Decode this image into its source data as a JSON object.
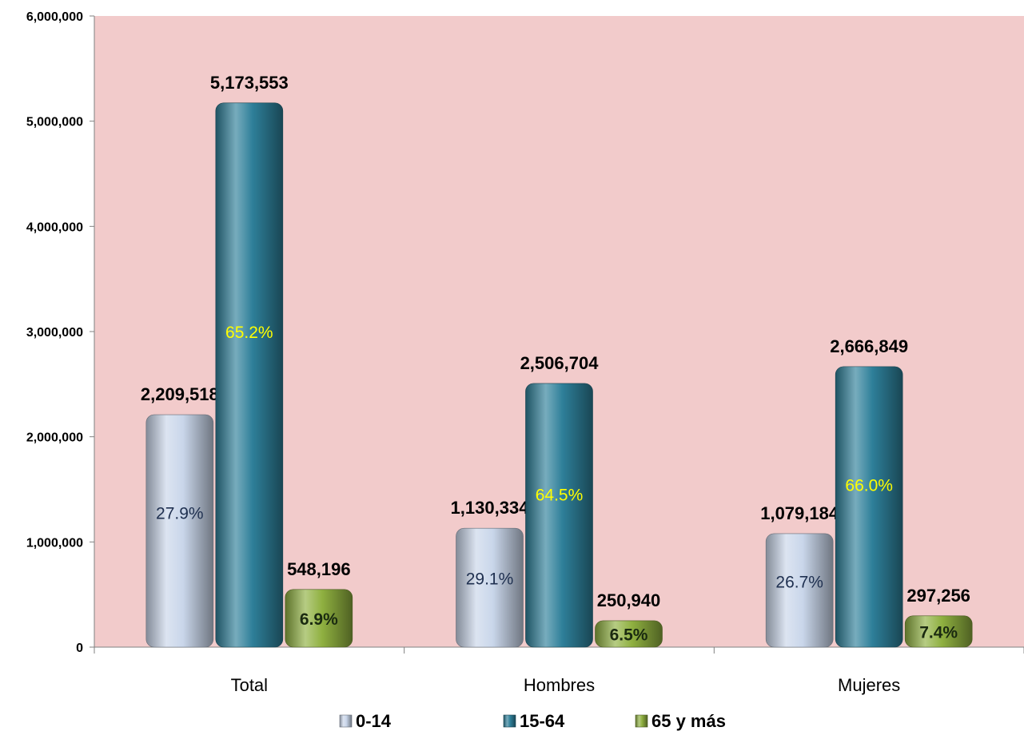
{
  "chart_data": {
    "type": "bar",
    "categories": [
      "Total",
      "Hombres",
      "Mujeres"
    ],
    "series": [
      {
        "name": "0-14",
        "values": [
          2209518,
          1130334,
          1079184
        ],
        "value_labels": [
          "2,209,518",
          "1,130,334",
          "1,079,184"
        ],
        "pct_labels": [
          "27.9%",
          "29.1%",
          "26.7%"
        ],
        "color": "#c9d6ea",
        "pct_color": "#1f3050"
      },
      {
        "name": "15-64",
        "values": [
          5173553,
          2506704,
          2666849
        ],
        "value_labels": [
          "5,173,553",
          "2,506,704",
          "2,666,849"
        ],
        "pct_labels": [
          "65.2%",
          "64.5%",
          "66.0%"
        ],
        "color": "#2e7f99",
        "pct_color": "#ffff00"
      },
      {
        "name": "65 y más",
        "values": [
          548196,
          250940,
          297256
        ],
        "value_labels": [
          "548,196",
          "250,940",
          "297,256"
        ],
        "pct_labels": [
          "6.9%",
          "6.5%",
          "7.4%"
        ],
        "color": "#8fb040",
        "pct_color": "#1a2a10"
      }
    ],
    "y_ticks": [
      0,
      1000000,
      2000000,
      3000000,
      4000000,
      5000000,
      6000000
    ],
    "y_tick_labels": [
      "0",
      "1,000,000",
      "2,000,000",
      "3,000,000",
      "4,000,000",
      "5,000,000",
      "6,000,000"
    ],
    "ylim": [
      0,
      6000000
    ],
    "title": "",
    "xlabel": "",
    "ylabel": "",
    "grid": false,
    "legend_position": "bottom",
    "plot_background": "#f2cbcb"
  }
}
